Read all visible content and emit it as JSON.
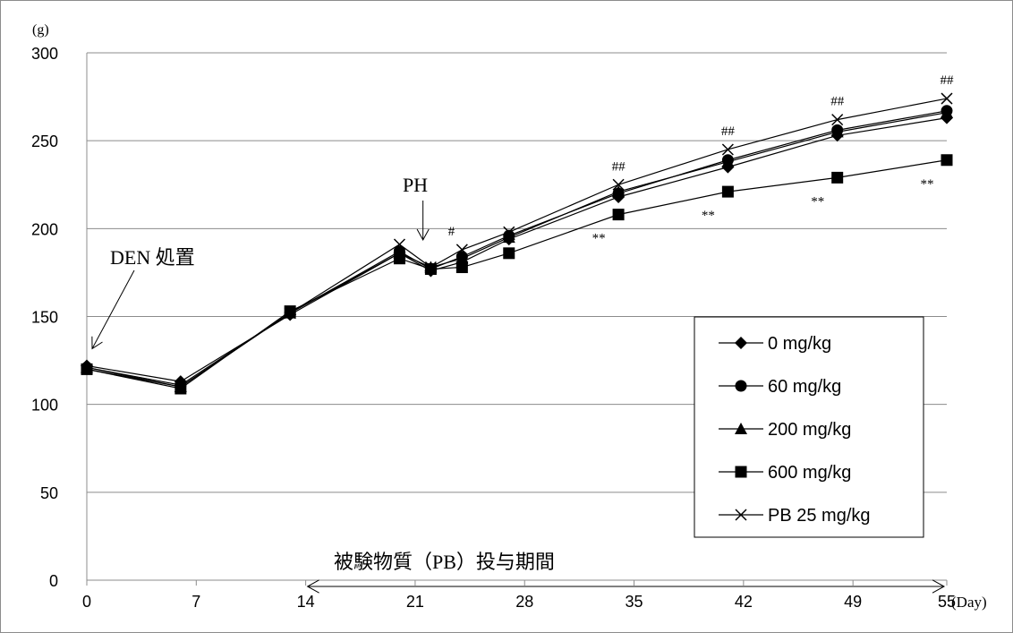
{
  "chart_data": {
    "type": "line",
    "y_unit_label": "(g)",
    "x_unit_label": "(Day)",
    "x_ticks": [
      0,
      7,
      14,
      21,
      28,
      35,
      42,
      49,
      55
    ],
    "y_ticks": [
      0,
      50,
      100,
      150,
      200,
      250,
      300
    ],
    "xlim": [
      0,
      55
    ],
    "ylim": [
      0,
      300
    ],
    "grid": "horizontal",
    "legend_position": "lower-right",
    "series": [
      {
        "name": "0 mg/kg",
        "marker": "diamond",
        "x": [
          0,
          6,
          13,
          20,
          22,
          24,
          27,
          34,
          41,
          48,
          55
        ],
        "y": [
          122,
          113,
          151,
          186,
          176,
          181,
          194,
          218,
          235,
          253,
          263
        ]
      },
      {
        "name": "60 mg/kg",
        "marker": "circle",
        "x": [
          0,
          6,
          13,
          20,
          22,
          24,
          27,
          34,
          41,
          48,
          55
        ],
        "y": [
          121,
          111,
          152,
          187,
          177,
          184,
          196,
          220,
          239,
          256,
          267
        ]
      },
      {
        "name": "200 mg/kg",
        "marker": "triangle",
        "x": [
          0,
          6,
          13,
          20,
          22,
          24,
          27,
          34,
          41,
          48,
          55
        ],
        "y": [
          121,
          110,
          152,
          186,
          178,
          183,
          195,
          221,
          238,
          255,
          266
        ]
      },
      {
        "name": "600 mg/kg",
        "marker": "square",
        "x": [
          0,
          6,
          13,
          20,
          22,
          24,
          27,
          34,
          41,
          48,
          55
        ],
        "y": [
          120,
          109,
          153,
          183,
          177,
          178,
          186,
          208,
          221,
          229,
          239
        ]
      },
      {
        "name": "PB 25 mg/kg",
        "marker": "x",
        "x": [
          0,
          6,
          13,
          20,
          22,
          24,
          27,
          34,
          41,
          48,
          55
        ],
        "y": [
          120,
          110,
          152,
          191,
          178,
          188,
          198,
          225,
          245,
          262,
          274
        ]
      }
    ],
    "annotations": [
      {
        "text": "DEN 処置",
        "kind": "arrow-label",
        "target_x": 0,
        "target_y": 121
      },
      {
        "text": "PH",
        "kind": "arrow-label",
        "target_x": 21.5,
        "target_y": 190
      },
      {
        "text": "#",
        "kind": "significance",
        "x": 24,
        "y": 188
      },
      {
        "text": "##",
        "kind": "significance",
        "x": 34,
        "y": 225
      },
      {
        "text": "##",
        "kind": "significance",
        "x": 41,
        "y": 245
      },
      {
        "text": "##",
        "kind": "significance",
        "x": 48,
        "y": 262
      },
      {
        "text": "##",
        "kind": "significance",
        "x": 55,
        "y": 274
      },
      {
        "text": "**",
        "kind": "significance-below",
        "x": 34,
        "y": 208
      },
      {
        "text": "**",
        "kind": "significance-below",
        "x": 41,
        "y": 221
      },
      {
        "text": "**",
        "kind": "significance-below",
        "x": 48,
        "y": 229
      },
      {
        "text": "**",
        "kind": "significance-below",
        "x": 55,
        "y": 239
      }
    ],
    "period": {
      "text": "被験物質（PB）投与期間",
      "x_start": 14,
      "x_end": 55,
      "y": 0
    }
  }
}
